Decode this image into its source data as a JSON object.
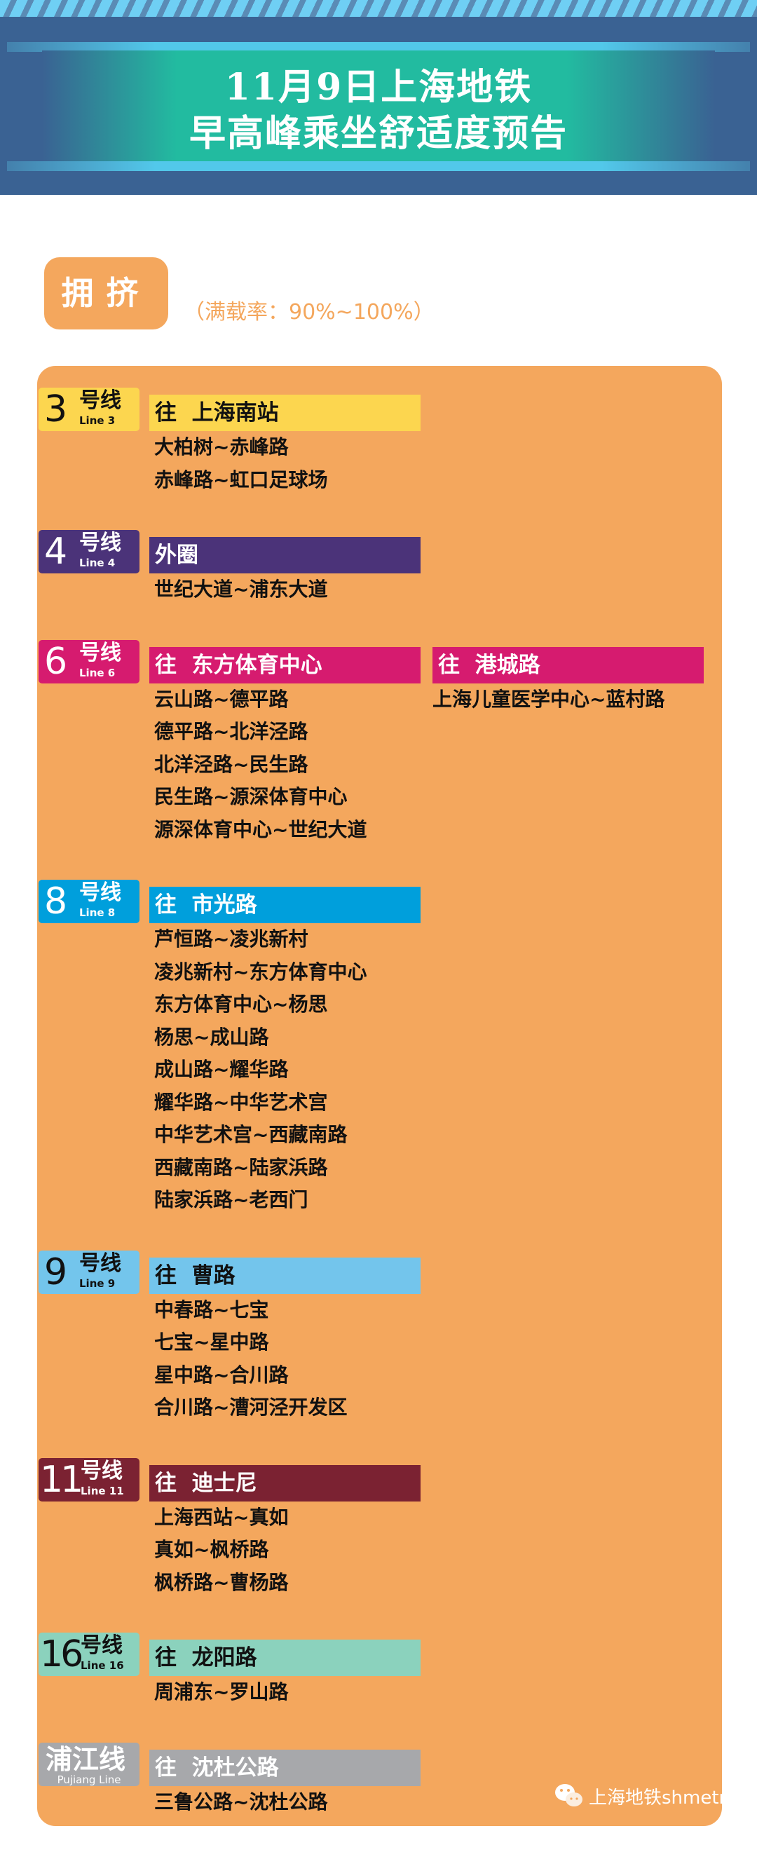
{
  "header": {
    "title_line1": "11月9日上海地铁",
    "title_line2": "早高峰乘坐舒适度预告"
  },
  "level": {
    "label": "拥挤",
    "rate": "（满载率：90%~100%）",
    "color": "#f4a75d"
  },
  "lines": [
    {
      "num": "3",
      "hx": "号线",
      "en": "Line 3",
      "color": "#fcd64f",
      "dark": true,
      "dirs": [
        {
          "dest": "往  上海南站",
          "segments": [
            "大柏树~赤峰路",
            "赤峰路~虹口足球场"
          ]
        }
      ]
    },
    {
      "num": "4",
      "hx": "号线",
      "en": "Line 4",
      "color": "#4b3379",
      "dark": false,
      "dirs": [
        {
          "dest": "外圈",
          "segments": [
            "世纪大道~浦东大道"
          ]
        }
      ]
    },
    {
      "num": "6",
      "hx": "号线",
      "en": "Line 6",
      "color": "#d61b6f",
      "dark": false,
      "dirs": [
        {
          "dest": "往  东方体育中心",
          "segments": [
            "云山路~德平路",
            "德平路~北洋泾路",
            "北洋泾路~民生路",
            "民生路~源深体育中心",
            "源深体育中心~世纪大道"
          ]
        },
        {
          "dest": "往  港城路",
          "segments": [
            "上海儿童医学中心~蓝村路"
          ]
        }
      ]
    },
    {
      "num": "8",
      "hx": "号线",
      "en": "Line 8",
      "color": "#009fdc",
      "dark": false,
      "dirs": [
        {
          "dest": "往  市光路",
          "segments": [
            "芦恒路~凌兆新村",
            "凌兆新村~东方体育中心",
            "东方体育中心~杨思",
            "杨思~成山路",
            "成山路~耀华路",
            "耀华路~中华艺术宫",
            "中华艺术宫~西藏南路",
            "西藏南路~陆家浜路",
            "陆家浜路~老西门"
          ]
        }
      ]
    },
    {
      "num": "9",
      "hx": "号线",
      "en": "Line 9",
      "color": "#73c5ec",
      "dark": true,
      "dirs": [
        {
          "dest": "往  曹路",
          "segments": [
            "中春路~七宝",
            "七宝~星中路",
            "星中路~合川路",
            "合川路~漕河泾开发区"
          ]
        }
      ]
    },
    {
      "num": "11",
      "hx": "号线",
      "en": "Line 11",
      "color": "#7b2232",
      "dark": false,
      "dirs": [
        {
          "dest": "往  迪士尼",
          "segments": [
            "上海西站~真如",
            "真如~枫桥路",
            "枫桥路~曹杨路"
          ]
        }
      ]
    },
    {
      "num": "16",
      "hx": "号线",
      "en": "Line 16",
      "color": "#8bd2bd",
      "dark": true,
      "dirs": [
        {
          "dest": "往  龙阳路",
          "segments": [
            "周浦东~罗山路"
          ]
        }
      ]
    },
    {
      "num": "浦江线",
      "hx": "",
      "en": "Pujiang Line",
      "color": "#a7a8ab",
      "dark": false,
      "dirs": [
        {
          "dest": "往  沈杜公路",
          "segments": [
            "三鲁公路~沈杜公路"
          ]
        }
      ]
    }
  ],
  "watermark": {
    "icon": "wechat-icon",
    "text": "上海地铁shmetro"
  }
}
